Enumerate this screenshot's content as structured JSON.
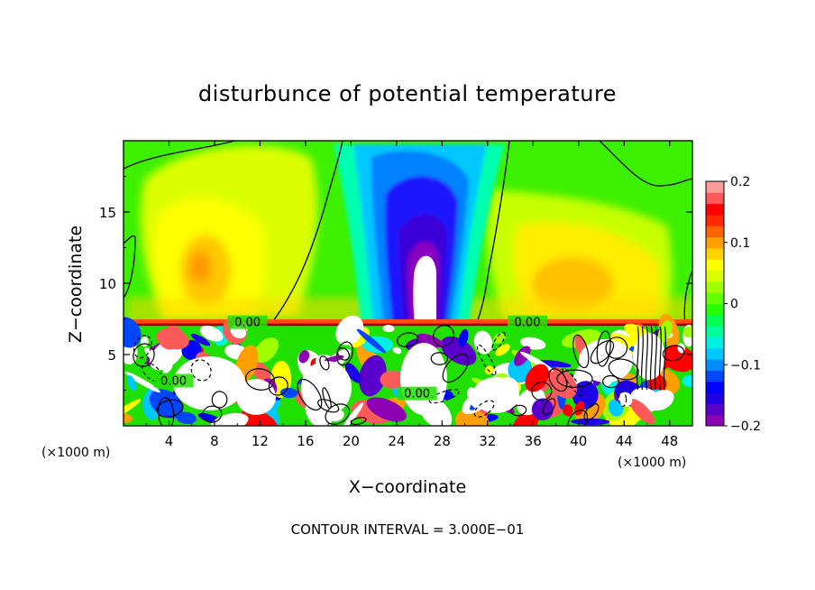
{
  "chart_data": {
    "type": "heatmap",
    "title": "disturbunce of potential temperature",
    "xlabel": "X−coordinate",
    "ylabel": "Z−coordinate",
    "x_unit": "(×1000 m)",
    "x_unit_right": "(×1000 m)",
    "footer": "CONTOUR INTERVAL = 3.000E−01",
    "xlim": [
      0,
      50
    ],
    "ylim": [
      0,
      20
    ],
    "x_ticks": [
      4,
      8,
      12,
      16,
      20,
      24,
      28,
      32,
      36,
      40,
      44,
      48
    ],
    "y_ticks": [
      5,
      10,
      15
    ],
    "colorbar": {
      "range": [
        -0.2,
        0.2
      ],
      "tick_values": [
        0.2,
        0.1,
        0,
        -0.1,
        -0.2
      ],
      "tick_labels": [
        "0.2",
        "0.1",
        "0",
        "−0.1",
        "−0.2"
      ],
      "colors": [
        "#8e00b4",
        "#5a00cc",
        "#1e00e6",
        "#0000ff",
        "#0046ff",
        "#008cff",
        "#00c8ff",
        "#00f0e6",
        "#00ffa0",
        "#00ff50",
        "#28ff00",
        "#64ff00",
        "#a0ff00",
        "#dcff00",
        "#ffff00",
        "#ffd200",
        "#ffa000",
        "#ff6400",
        "#ff2800",
        "#ff0000",
        "#ff5a5a",
        "#ff9a9a"
      ]
    },
    "contour_labels": [
      {
        "text": "0.00",
        "x": 10.9,
        "z": 7.3
      },
      {
        "text": "0.00",
        "x": 35.5,
        "z": 7.3
      },
      {
        "text": "0.00",
        "x": 4.4,
        "z": 3.2
      },
      {
        "text": "0.00",
        "x": 25.8,
        "z": 2.3
      }
    ]
  }
}
